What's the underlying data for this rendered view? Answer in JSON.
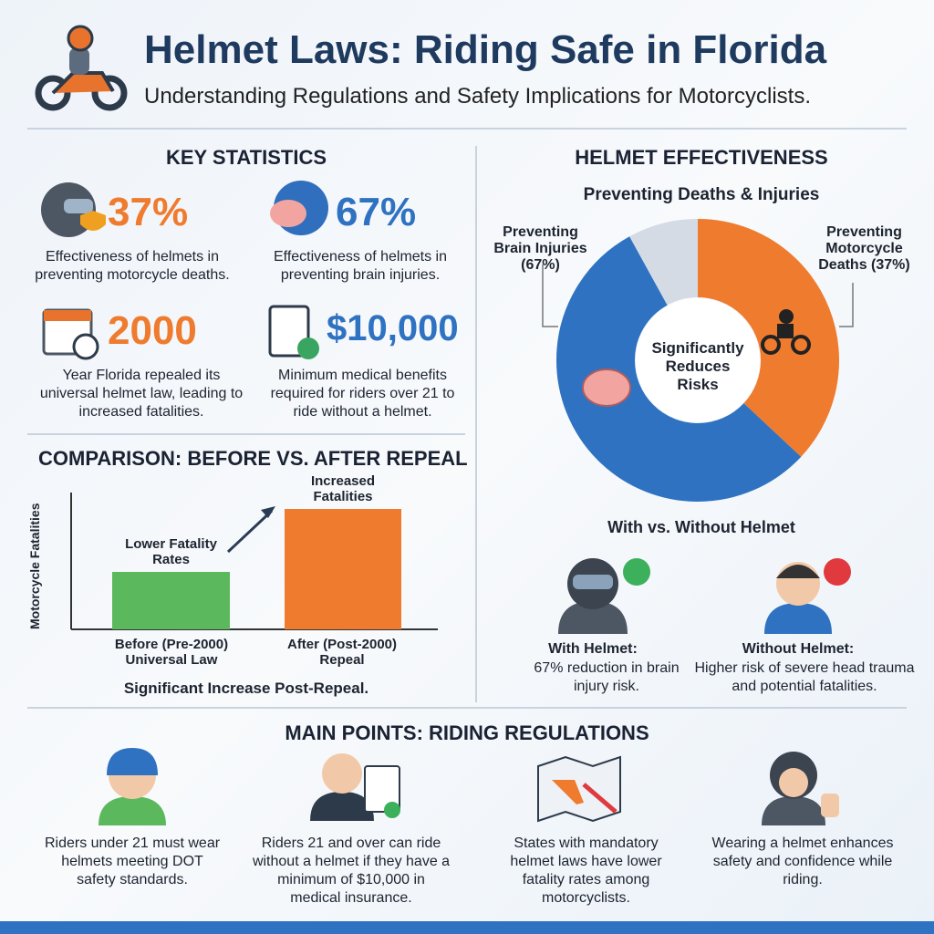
{
  "header": {
    "title": "Helmet Laws: Riding Safe in Florida",
    "subtitle": "Understanding Regulations and Safety Implications for Motorcyclists."
  },
  "key_statistics": {
    "heading": "KEY STATISTICS",
    "items": [
      {
        "value": "37%",
        "description": "Effectiveness of helmets in preventing motorcycle deaths."
      },
      {
        "value": "67%",
        "description": "Effectiveness of helmets in preventing brain injuries."
      },
      {
        "value": "2000",
        "description": "Year Florida repealed its universal helmet law, leading to increased fatalities."
      },
      {
        "value": "$10,000",
        "description": "Minimum medical benefits required for riders over 21 to ride without a helmet."
      }
    ]
  },
  "comparison": {
    "heading": "COMPARISON: BEFORE VS. AFTER REPEAL",
    "y_label": "Motorcycle Fatalities",
    "bars": [
      {
        "label": "Before (Pre-2000) Universal Law",
        "annotation": "Lower Fatality Rates"
      },
      {
        "label": "After (Post-2000) Repeal",
        "annotation": "Increased Fatalities"
      }
    ],
    "caption": "Significant Increase Post-Repeal."
  },
  "effectiveness": {
    "heading": "HELMET EFFECTIVENESS",
    "subheading": "Preventing Deaths & Injuries",
    "labels": [
      "Preventing Brain Injuries (67%)",
      "Preventing Motorcycle Deaths (37%)"
    ],
    "center": "Significantly Reduces Risks",
    "comparison_heading": "With vs. Without Helmet",
    "with": {
      "title": "With Helmet:",
      "text": "67% reduction in brain injury risk."
    },
    "without": {
      "title": "Without Helmet:",
      "text": "Higher risk of severe head trauma and potential fatalities."
    }
  },
  "main_points": {
    "heading": "MAIN POINTS: RIDING REGULATIONS",
    "items": [
      "Riders under 21 must wear helmets meeting DOT safety standards.",
      "Riders 21 and over can ride without a helmet if they have a minimum of $10,000 in medical insurance.",
      "States with mandatory helmet laws have lower fatality rates among motorcyclists.",
      "Wearing a helmet enhances safety and confidence while riding."
    ]
  }
}
